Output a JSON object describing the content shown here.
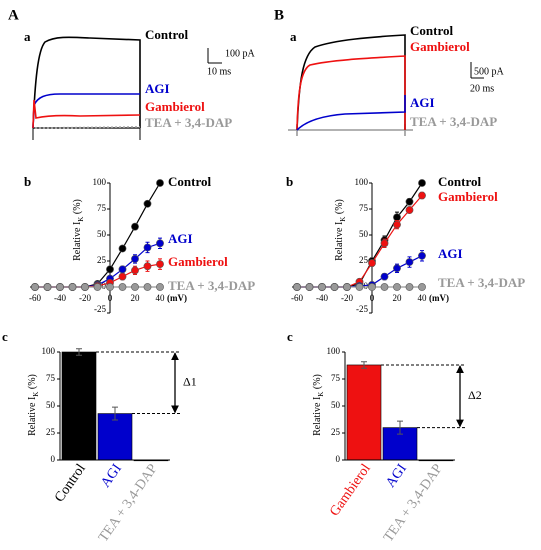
{
  "traces": [
    {
      "group": "A",
      "panel_label": "a",
      "labels": [
        "Control",
        "AGI",
        "Gambierol",
        "TEA + 3,4-DAP"
      ],
      "scale_y": "100 pA",
      "scale_x": "10 ms"
    },
    {
      "group": "B",
      "panel_label": "a",
      "labels": [
        "Control",
        "Gambierol",
        "AGI",
        "TEA + 3,4-DAP"
      ],
      "scale_y": "500 pA",
      "scale_x": "20 ms"
    }
  ],
  "chart_data": [
    {
      "type": "line",
      "panel_label": "b",
      "ylabel": [
        "Relative I",
        "K",
        " (%)"
      ],
      "xlabel": "(mV)",
      "x": [
        -60,
        -50,
        -40,
        -30,
        -20,
        -10,
        0,
        10,
        20,
        30,
        40
      ],
      "series": [
        {
          "name": "Control",
          "color": "#000000",
          "values": [
            0,
            0,
            0,
            0,
            0,
            3,
            17,
            37,
            58,
            80,
            100
          ]
        },
        {
          "name": "AGI",
          "color": "#0000cc",
          "values": [
            0,
            0,
            0,
            0,
            0,
            2,
            8,
            17,
            27,
            38,
            42
          ],
          "errors": [
            0,
            0,
            0,
            0,
            0,
            1,
            2,
            3,
            4,
            5,
            5
          ]
        },
        {
          "name": "Gambierol",
          "color": "#ee1111",
          "values": [
            0,
            0,
            0,
            0,
            0,
            1,
            4,
            10,
            16,
            20,
            22
          ],
          "errors": [
            0,
            0,
            0,
            0,
            0,
            1,
            2,
            3,
            4,
            5,
            5
          ]
        },
        {
          "name": "TEA + 3,4-DAP",
          "color": "#999999",
          "values": [
            0,
            0,
            0,
            0,
            0,
            0,
            0,
            0,
            0,
            0,
            0
          ]
        }
      ],
      "xlim": [
        -60,
        40
      ],
      "xticks": [
        -60,
        -40,
        -20,
        0,
        20,
        40
      ],
      "ylim": [
        -25,
        100
      ],
      "yticks": [
        -25,
        0,
        25,
        50,
        75,
        100
      ]
    },
    {
      "type": "bar",
      "panel_label": "c",
      "ylabel": [
        "Relative I",
        "K",
        " (%)"
      ],
      "categories": [
        "Control",
        "AGI",
        "TEA + 3,4-DAP"
      ],
      "values": [
        100,
        43,
        0
      ],
      "errors": [
        3,
        6,
        0
      ],
      "colors": [
        "#000000",
        "#0000cc",
        "#999999"
      ],
      "annotation": "Δ1",
      "ylim": [
        0,
        100
      ],
      "yticks": [
        0,
        25,
        50,
        75,
        100
      ]
    },
    {
      "type": "line",
      "panel_label": "b",
      "ylabel": [
        "Relative I",
        "K",
        " (%)"
      ],
      "xlabel": "(mV)",
      "x": [
        -60,
        -50,
        -40,
        -30,
        -20,
        -10,
        0,
        10,
        20,
        30,
        40
      ],
      "series": [
        {
          "name": "Control",
          "color": "#000000",
          "values": [
            0,
            0,
            0,
            0,
            0,
            3,
            25,
            45,
            67,
            82,
            100
          ],
          "errors": [
            0,
            0,
            0,
            0,
            0,
            1,
            3,
            4,
            5,
            3,
            2
          ]
        },
        {
          "name": "Gambierol",
          "color": "#ee1111",
          "values": [
            0,
            0,
            0,
            0,
            0,
            5,
            23,
            42,
            60,
            74,
            88
          ],
          "errors": [
            0,
            0,
            0,
            0,
            0,
            1,
            3,
            4,
            4,
            3,
            3
          ]
        },
        {
          "name": "AGI",
          "color": "#0000cc",
          "values": [
            0,
            0,
            0,
            0,
            0,
            1,
            2,
            10,
            18,
            24,
            30
          ],
          "errors": [
            0,
            0,
            0,
            0,
            0,
            1,
            1,
            3,
            4,
            5,
            5
          ]
        },
        {
          "name": "TEA + 3,4-DAP",
          "color": "#999999",
          "values": [
            0,
            0,
            0,
            0,
            0,
            0,
            0,
            0,
            0,
            0,
            0
          ]
        }
      ],
      "xlim": [
        -60,
        40
      ],
      "xticks": [
        -60,
        -40,
        -20,
        0,
        20,
        40
      ],
      "ylim": [
        -25,
        100
      ],
      "yticks": [
        -25,
        0,
        25,
        50,
        75,
        100
      ]
    },
    {
      "type": "bar",
      "panel_label": "c",
      "ylabel": [
        "Relative I",
        "K",
        " (%)"
      ],
      "categories": [
        "Gambierol",
        "AGI",
        "TEA + 3,4-DAP"
      ],
      "values": [
        88,
        30,
        0
      ],
      "errors": [
        3,
        6,
        0
      ],
      "colors": [
        "#ee1111",
        "#0000cc",
        "#999999"
      ],
      "annotation": "Δ2",
      "ylim": [
        0,
        100
      ],
      "yticks": [
        0,
        25,
        50,
        75,
        100
      ]
    }
  ]
}
